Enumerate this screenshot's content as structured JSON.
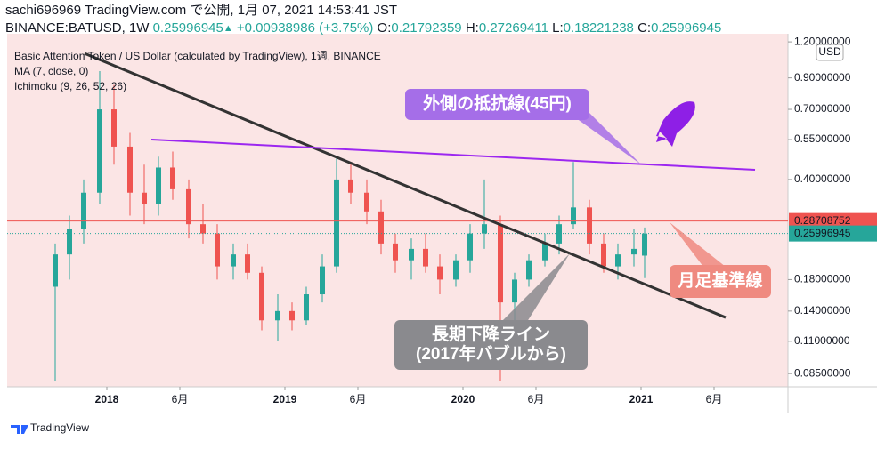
{
  "header": {
    "line1": "sachi696969 TradingView.com で公開, 1月 07, 2021 14:53:41 JST",
    "symbol": "BINANCE:BATUSD, 1W",
    "arrow": "▲",
    "change": "+0.00938986 (+3.75%)",
    "o": "O:",
    "h": "H:",
    "l": "L:",
    "c": "C:"
  },
  "legend": [
    "Basic Attention Token / US Dollar (calculated by TradingView), 1週, BINANCE",
    "MA (7, close, 0)",
    "Ichimoku (9, 26, 52, 26)"
  ],
  "currency": "USD",
  "brand": "TradingView",
  "chart_data": {
    "type": "candlestick",
    "log_scale": true,
    "up_color": "#26a69a",
    "down_color": "#ef5350",
    "x": [
      2017.71,
      2017.79,
      2017.87,
      2017.96,
      2018.04,
      2018.13,
      2018.21,
      2018.29,
      2018.37,
      2018.46,
      2018.54,
      2018.62,
      2018.71,
      2018.79,
      2018.87,
      2018.96,
      2019.04,
      2019.12,
      2019.21,
      2019.29,
      2019.37,
      2019.46,
      2019.54,
      2019.62,
      2019.71,
      2019.79,
      2019.87,
      2019.96,
      2020.04,
      2020.12,
      2020.21,
      2020.29,
      2020.37,
      2020.46,
      2020.54,
      2020.62,
      2020.71,
      2020.79,
      2020.87,
      2020.96,
      2021.02
    ],
    "open": [
      0.17,
      0.22,
      0.27,
      0.36,
      0.7,
      0.52,
      0.36,
      0.33,
      0.44,
      0.37,
      0.28,
      0.26,
      0.2,
      0.22,
      0.19,
      0.13,
      0.14,
      0.13,
      0.16,
      0.2,
      0.4,
      0.36,
      0.31,
      0.24,
      0.21,
      0.23,
      0.2,
      0.18,
      0.21,
      0.26,
      0.28,
      0.15,
      0.18,
      0.21,
      0.24,
      0.28,
      0.32,
      0.24,
      0.2,
      0.22,
      0.21792359
    ],
    "high": [
      0.24,
      0.3,
      0.4,
      0.95,
      0.85,
      0.58,
      0.45,
      0.48,
      0.5,
      0.4,
      0.33,
      0.28,
      0.24,
      0.24,
      0.2,
      0.16,
      0.15,
      0.17,
      0.22,
      0.48,
      0.46,
      0.4,
      0.34,
      0.26,
      0.25,
      0.26,
      0.22,
      0.22,
      0.28,
      0.4,
      0.3,
      0.19,
      0.22,
      0.26,
      0.3,
      0.46,
      0.34,
      0.26,
      0.24,
      0.27,
      0.27269411
    ],
    "low": [
      0.08,
      0.18,
      0.24,
      0.33,
      0.45,
      0.3,
      0.28,
      0.3,
      0.34,
      0.25,
      0.24,
      0.18,
      0.18,
      0.18,
      0.12,
      0.11,
      0.12,
      0.125,
      0.15,
      0.19,
      0.33,
      0.28,
      0.22,
      0.19,
      0.18,
      0.19,
      0.16,
      0.17,
      0.19,
      0.23,
      0.08,
      0.13,
      0.17,
      0.2,
      0.22,
      0.27,
      0.22,
      0.19,
      0.18,
      0.2,
      0.18221238
    ],
    "close": [
      0.22,
      0.27,
      0.36,
      0.7,
      0.52,
      0.36,
      0.33,
      0.44,
      0.37,
      0.28,
      0.26,
      0.2,
      0.22,
      0.19,
      0.13,
      0.14,
      0.13,
      0.16,
      0.2,
      0.4,
      0.36,
      0.31,
      0.24,
      0.21,
      0.23,
      0.2,
      0.18,
      0.21,
      0.26,
      0.28,
      0.15,
      0.18,
      0.21,
      0.24,
      0.28,
      0.32,
      0.24,
      0.2,
      0.22,
      0.23,
      0.25996945
    ],
    "xlim": [
      2017.44,
      2021.825
    ],
    "xticks": [
      2018,
      {
        "value": 2018.41,
        "label": "6月"
      },
      2019,
      {
        "value": 2019.41,
        "label": "6月"
      },
      2020,
      {
        "value": 2020.41,
        "label": "6月"
      },
      2021,
      {
        "value": 2021.41,
        "label": "6月"
      }
    ],
    "ylim": [
      0.0765,
      1.28
    ],
    "yticks": [
      {
        "value": 1.2,
        "label": "1.20000000"
      },
      {
        "value": 0.9,
        "label": "0.90000000"
      },
      {
        "value": 0.7,
        "label": "0.70000000"
      },
      {
        "value": 0.55,
        "label": "0.55000000"
      },
      {
        "value": 0.4,
        "label": "0.40000000"
      },
      {
        "value": 0.18,
        "label": "0.18000000"
      },
      {
        "value": 0.14,
        "label": "0.14000000"
      },
      {
        "value": 0.11,
        "label": "0.11000000"
      },
      {
        "value": 0.085,
        "label": "0.08500000"
      }
    ],
    "price_lines": [
      {
        "value": 0.28708752,
        "color": "#ef5350"
      },
      {
        "value": 0.25996945,
        "color": "#26a69a"
      }
    ],
    "trendlines": [
      {
        "x": [
          2017.875,
          2021.475
        ],
        "y": [
          1.094,
          0.133
        ],
        "color": "#333333"
      },
      {
        "x": [
          2018.25,
          2021.64
        ],
        "y": [
          0.55,
          0.432
        ],
        "color": "#9c27f0"
      }
    ],
    "annotations": [
      {
        "lines": [
          "外側の抵抗線(45円)"
        ],
        "color": "#a56ee8"
      },
      {
        "lines": [
          "月足基準線"
        ],
        "color": "#ef8a80"
      },
      {
        "lines": [
          "長期下降ライン",
          "(2017年バブルから)"
        ],
        "color": "#8a8a8e"
      }
    ]
  }
}
